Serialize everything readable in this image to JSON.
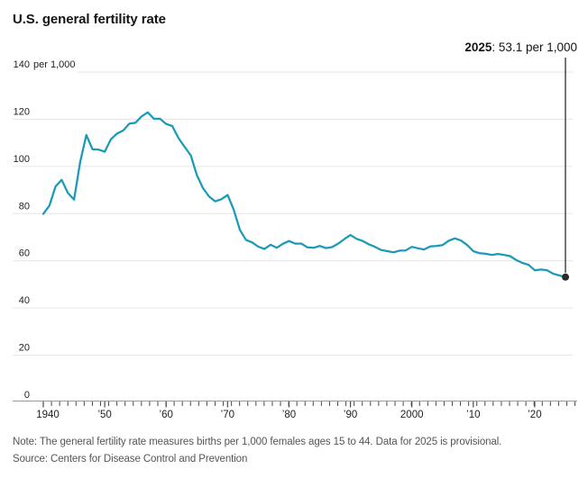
{
  "title": "U.S. general fertility rate",
  "annotation": {
    "year": "2025",
    "rest": ": 53.1 per 1,000"
  },
  "y_axis": {
    "ticks": [
      0,
      20,
      40,
      60,
      80,
      100,
      120,
      140
    ],
    "top_suffix": "per 1,000"
  },
  "x_axis": {
    "labels": [
      {
        "year": 1940,
        "label": "1940"
      },
      {
        "year": 1950,
        "label": "’50"
      },
      {
        "year": 1960,
        "label": "’60"
      },
      {
        "year": 1970,
        "label": "’70"
      },
      {
        "year": 1980,
        "label": "’80"
      },
      {
        "year": 1990,
        "label": "’90"
      },
      {
        "year": 2000,
        "label": "2000"
      },
      {
        "year": 2010,
        "label": "’10"
      },
      {
        "year": 2020,
        "label": "’20"
      }
    ]
  },
  "note": "Note: The general fertility rate measures births per 1,000 females ages 15 to 44. Data for 2025 is provisional.",
  "source": "Source: Centers for Disease Control and Prevention",
  "colors": {
    "line": "#1a9ab8",
    "endpoint": "#2b2b2b",
    "callout": "#2b2b2b",
    "grid": "#e6e6e6",
    "axis": "#9a9a9a",
    "tick": "#4a4a4a",
    "axis_text": "#222222",
    "note_text": "#555555",
    "title_text": "#141414"
  },
  "chart_data": {
    "type": "line",
    "title": "U.S. general fertility rate",
    "ylabel": "births per 1,000 females ages 15 to 44",
    "ylim": [
      0,
      140
    ],
    "ytick_step": 20,
    "grid": "horizontal",
    "legend": "none",
    "x_start": 1940,
    "x_end": 2025,
    "x_step": 1,
    "endpoint_label": "2025: 53.1 per 1,000",
    "values": [
      79.9,
      83.4,
      91.5,
      94.3,
      88.8,
      85.9,
      101.9,
      113.3,
      107.3,
      107.1,
      106.2,
      111.5,
      113.9,
      115.2,
      118.1,
      118.5,
      121.2,
      122.9,
      120.2,
      120.2,
      118.0,
      117.1,
      112.0,
      108.3,
      104.7,
      96.3,
      90.8,
      87.2,
      85.2,
      86.1,
      87.9,
      81.6,
      73.1,
      68.8,
      67.8,
      66.0,
      65.0,
      66.8,
      65.5,
      67.2,
      68.4,
      67.3,
      67.3,
      65.7,
      65.5,
      66.3,
      65.4,
      65.8,
      67.3,
      69.2,
      70.9,
      69.3,
      68.4,
      67.0,
      65.9,
      64.6,
      64.1,
      63.6,
      64.3,
      64.4,
      65.9,
      65.3,
      64.8,
      66.1,
      66.3,
      66.7,
      68.5,
      69.5,
      68.6,
      66.7,
      64.1,
      63.2,
      63.0,
      62.5,
      62.9,
      62.5,
      62.0,
      60.3,
      59.1,
      58.3,
      56.0,
      56.3,
      56.0,
      54.5,
      53.8,
      53.1
    ]
  }
}
